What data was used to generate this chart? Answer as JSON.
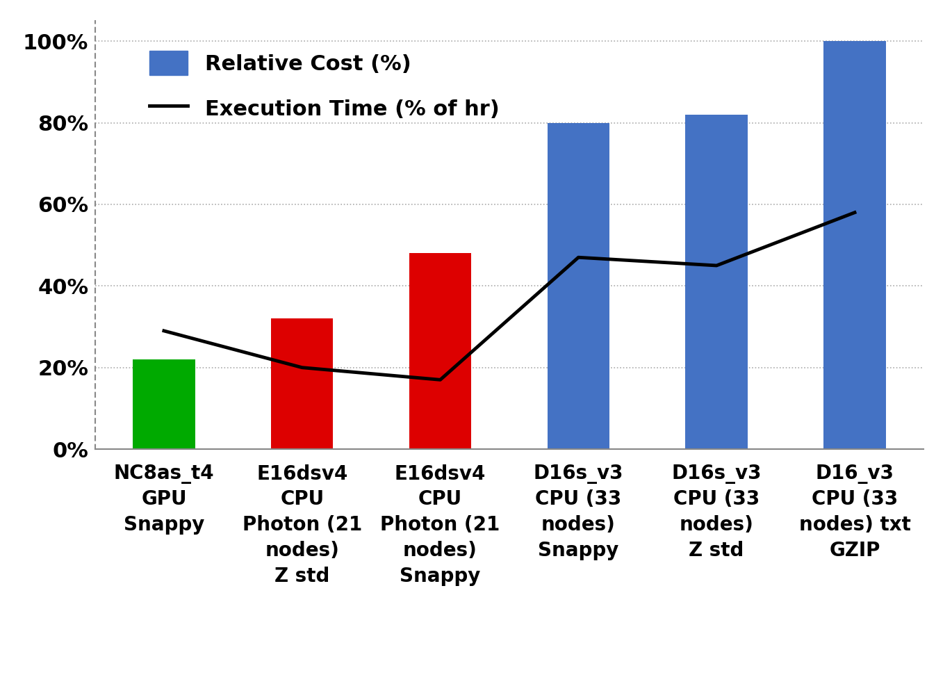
{
  "categories": [
    "NC8as_t4\nGPU\nSnappy",
    "E16dsv4\nCPU\nPhoton (21\nnodes)\nZ std",
    "E16dsv4\nCPU\nPhoton (21\nnodes)\nSnappy",
    "D16s_v3\nCPU (33\nnodes)\nSnappy",
    "D16s_v3\nCPU (33\nnodes)\nZ std",
    "D16_v3\nCPU (33\nnodes) txt\nGZIP"
  ],
  "bar_values": [
    22,
    32,
    48,
    80,
    82,
    100
  ],
  "bar_colors": [
    "#00AA00",
    "#DD0000",
    "#DD0000",
    "#4472C4",
    "#4472C4",
    "#4472C4"
  ],
  "line_values": [
    29,
    20,
    17,
    47,
    45,
    58
  ],
  "line_color": "#000000",
  "line_width": 3.5,
  "legend_bar_label": "Relative Cost (%)",
  "legend_line_label": "Execution Time (% of hr)",
  "legend_bar_color": "#4472C4",
  "ylim": [
    0,
    105
  ],
  "yticks": [
    0,
    20,
    40,
    60,
    80,
    100
  ],
  "ytick_labels": [
    "0%",
    "20%",
    "40%",
    "60%",
    "80%",
    "100%"
  ],
  "background_color": "#FFFFFF",
  "grid_color": "#AAAAAA",
  "bar_width": 0.45,
  "tick_fontsize": 22,
  "legend_fontsize": 22,
  "label_fontsize": 20
}
